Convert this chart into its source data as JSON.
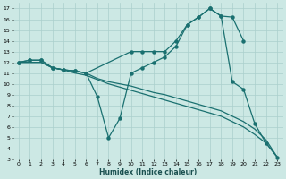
{
  "xlabel": "Humidex (Indice chaleur)",
  "bg_color": "#cce8e4",
  "line_color": "#1a7070",
  "grid_color": "#aacfcc",
  "xlim": [
    -0.5,
    23.5
  ],
  "ylim": [
    3,
    17.5
  ],
  "xticks": [
    0,
    1,
    2,
    3,
    4,
    5,
    6,
    7,
    8,
    9,
    10,
    11,
    12,
    13,
    14,
    15,
    16,
    17,
    18,
    19,
    20,
    21,
    22,
    23
  ],
  "yticks": [
    3,
    4,
    5,
    6,
    7,
    8,
    9,
    10,
    11,
    12,
    13,
    14,
    15,
    16,
    17
  ],
  "lines": [
    {
      "x": [
        0,
        1,
        2,
        3,
        4,
        5,
        6,
        10,
        11,
        12,
        13,
        14,
        15,
        16,
        17,
        18,
        19,
        20
      ],
      "y": [
        12,
        12.2,
        12.2,
        11.5,
        11.3,
        11.2,
        11.0,
        13.0,
        13.0,
        13.0,
        13.0,
        14.0,
        15.5,
        16.2,
        17.0,
        16.3,
        16.2,
        14.0
      ],
      "has_markers": true
    },
    {
      "x": [
        0,
        1,
        2,
        3,
        4,
        5,
        6,
        7,
        8,
        9,
        10,
        11,
        12,
        13,
        14,
        15,
        16,
        17,
        18,
        19,
        20,
        21,
        22,
        23
      ],
      "y": [
        12,
        12.2,
        12.2,
        11.5,
        11.3,
        11.2,
        11.0,
        8.8,
        5.0,
        6.8,
        11.0,
        11.5,
        12.0,
        12.5,
        13.5,
        15.5,
        16.2,
        17.0,
        16.3,
        10.2,
        9.5,
        6.3,
        4.5,
        3.2
      ],
      "has_markers": true
    },
    {
      "x": [
        0,
        1,
        2,
        3,
        4,
        5,
        6,
        7,
        8,
        9,
        10,
        11,
        12,
        13,
        14,
        15,
        16,
        17,
        18,
        19,
        20,
        21,
        22,
        23
      ],
      "y": [
        12,
        12,
        12,
        11.5,
        11.3,
        11.2,
        11.0,
        10.5,
        10.2,
        10.0,
        9.8,
        9.5,
        9.2,
        9.0,
        8.7,
        8.4,
        8.1,
        7.8,
        7.5,
        7.0,
        6.5,
        5.8,
        4.8,
        3.2
      ],
      "has_markers": false
    },
    {
      "x": [
        0,
        1,
        2,
        3,
        4,
        5,
        6,
        7,
        8,
        9,
        10,
        11,
        12,
        13,
        14,
        15,
        16,
        17,
        18,
        19,
        20,
        21,
        22,
        23
      ],
      "y": [
        12,
        12,
        12,
        11.5,
        11.3,
        11.0,
        10.8,
        10.4,
        10.0,
        9.7,
        9.4,
        9.1,
        8.8,
        8.5,
        8.2,
        7.9,
        7.6,
        7.3,
        7.0,
        6.5,
        6.0,
        5.3,
        4.5,
        3.2
      ],
      "has_markers": false
    }
  ]
}
